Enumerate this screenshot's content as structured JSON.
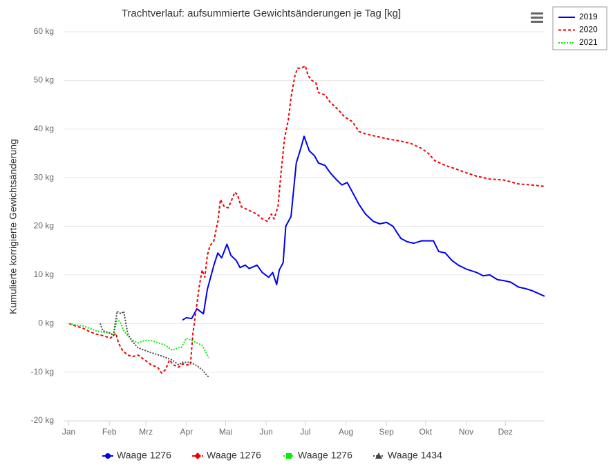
{
  "chart_data": {
    "type": "line",
    "title": "Trachtverlauf: aufsummierte Gewichtsänderungen je Tag [kg]",
    "y_label": "Kumulierte korrigierte Gewichtsänderung",
    "xlim": [
      -4,
      364
    ],
    "xticks": [
      {
        "value": 0,
        "label": "Jan"
      },
      {
        "value": 31,
        "label": "Feb"
      },
      {
        "value": 59,
        "label": "Mrz"
      },
      {
        "value": 90,
        "label": "Apr"
      },
      {
        "value": 120,
        "label": "Mai"
      },
      {
        "value": 151,
        "label": "Jun"
      },
      {
        "value": 181,
        "label": "Jul"
      },
      {
        "value": 212,
        "label": "Aug"
      },
      {
        "value": 243,
        "label": "Sep"
      },
      {
        "value": 273,
        "label": "Okt"
      },
      {
        "value": 304,
        "label": "Nov"
      },
      {
        "value": 334,
        "label": "Dez"
      }
    ],
    "ylim": [
      -20,
      60
    ],
    "yticks": [
      {
        "value": -20,
        "label": "-20 kg"
      },
      {
        "value": -10,
        "label": "-10 kg"
      },
      {
        "value": 0,
        "label": "0 kg"
      },
      {
        "value": 10,
        "label": "10 kg"
      },
      {
        "value": 20,
        "label": "20 kg"
      },
      {
        "value": 30,
        "label": "30 kg"
      },
      {
        "value": 40,
        "label": "40 kg"
      },
      {
        "value": 50,
        "label": "50 kg"
      },
      {
        "value": 60,
        "label": "60 kg"
      }
    ],
    "grid": true,
    "series": [
      {
        "name": "Waage 1276",
        "color": "#0000ee",
        "dash": "solid",
        "marker": "circle",
        "x": [
          87,
          90,
          94,
          98,
          103,
          106,
          111,
          114,
          117,
          121,
          124,
          128,
          131,
          135,
          138,
          144,
          148,
          153,
          156,
          159,
          161,
          164,
          166,
          170,
          174,
          178,
          180,
          184,
          188,
          191,
          196,
          200,
          205,
          209,
          213,
          217,
          222,
          227,
          233,
          238,
          243,
          248,
          254,
          259,
          264,
          270,
          275,
          279,
          283,
          288,
          293,
          298,
          304,
          312,
          317,
          322,
          328,
          333,
          338,
          344,
          349,
          354,
          359,
          364
        ],
        "values": [
          0.7,
          1.2,
          1.0,
          3.0,
          2.0,
          7,
          12,
          14.5,
          13.5,
          16.3,
          14,
          13,
          11.5,
          12,
          11.3,
          12,
          10.5,
          9.5,
          10.5,
          8,
          11,
          12.5,
          20,
          22,
          33,
          36.5,
          38.5,
          35.5,
          34.5,
          33,
          32.5,
          31,
          29.5,
          28.5,
          29,
          27,
          24.5,
          22.5,
          21,
          20.5,
          20.8,
          20,
          17.5,
          16.8,
          16.5,
          17,
          17,
          17,
          14.8,
          14.5,
          13,
          12,
          11.2,
          10.5,
          9.8,
          10,
          9,
          8.8,
          8.5,
          7.5,
          7.2,
          6.8,
          6.2,
          5.6
        ]
      },
      {
        "name": "Waage 1276",
        "color": "#ee0000",
        "dash": "dashed",
        "marker": "diamond",
        "x": [
          0,
          5,
          11,
          16,
          21,
          26,
          32,
          36,
          38,
          41,
          45,
          49,
          53,
          58,
          63,
          68,
          71,
          74,
          77,
          80,
          84,
          87,
          90,
          93,
          95,
          98,
          100,
          102,
          104,
          106,
          108,
          111,
          114,
          116,
          119,
          122,
          124,
          127,
          129,
          132,
          136,
          140,
          144,
          148,
          152,
          155,
          157,
          160,
          162,
          165,
          168,
          170,
          173,
          175,
          178,
          181,
          183,
          186,
          189,
          191,
          196,
          200,
          206,
          211,
          217,
          222,
          227,
          235,
          243,
          254,
          262,
          270,
          275,
          280,
          288,
          296,
          304,
          312,
          322,
          333,
          344,
          354,
          364
        ],
        "values": [
          0,
          -0.5,
          -1,
          -1.7,
          -2.2,
          -2.5,
          -3,
          -2,
          -4,
          -5.5,
          -6.5,
          -6.8,
          -6.5,
          -7.5,
          -8.5,
          -9,
          -10.2,
          -9.5,
          -7.5,
          -8.5,
          -9,
          -8.3,
          -8.5,
          -8.5,
          -2,
          4,
          8,
          11,
          9.5,
          14,
          16,
          17,
          21,
          25.5,
          24,
          23.8,
          25,
          27,
          26.5,
          24,
          23.5,
          23,
          22.5,
          21.5,
          21,
          22.5,
          21.5,
          24,
          30,
          38,
          42,
          46.5,
          51,
          52.5,
          52.5,
          53,
          51,
          50,
          49.5,
          47.5,
          47,
          45.5,
          44,
          42.5,
          41.5,
          39.5,
          39,
          38.5,
          38,
          37.5,
          37,
          36,
          35,
          33.5,
          32.5,
          31.8,
          31,
          30.3,
          29.7,
          29.5,
          28.7,
          28.5,
          28.2
        ]
      },
      {
        "name": "Waage 1276",
        "color": "#00ee00",
        "dash": "dotted",
        "marker": "square",
        "x": [
          0,
          5,
          11,
          16,
          21,
          26,
          32,
          34,
          37,
          40,
          42,
          45,
          49,
          53,
          58,
          63,
          69,
          74,
          79,
          84,
          86,
          90,
          94,
          98,
          102,
          105,
          107
        ],
        "values": [
          0,
          -0.3,
          -0.5,
          -1,
          -1.5,
          -1.8,
          -2,
          -2.5,
          1,
          0,
          -1.5,
          -2.5,
          -3.5,
          -4,
          -3.5,
          -3.5,
          -4,
          -4.5,
          -5.5,
          -5,
          -5,
          -3,
          -3.5,
          -4,
          -4.5,
          -6,
          -7
        ]
      },
      {
        "name": "Waage 1434",
        "color": "#444444",
        "dash": "dotted",
        "marker": "triangle",
        "x": [
          24,
          26,
          32,
          34,
          37,
          40,
          42,
          45,
          48,
          53,
          58,
          63,
          69,
          74,
          79,
          84,
          87,
          93,
          98,
          102,
          105,
          107
        ],
        "values": [
          0,
          -1.5,
          -2,
          -2.5,
          2.5,
          2,
          2.5,
          -2,
          -3.5,
          -5,
          -5.5,
          -6,
          -6.5,
          -7,
          -7.5,
          -8.5,
          -8,
          -8,
          -8.7,
          -9.5,
          -10.5,
          -11
        ]
      }
    ],
    "year_legend": [
      {
        "label": "2019",
        "color": "#0000ee",
        "dash": "solid"
      },
      {
        "label": "2020",
        "color": "#ee0000",
        "dash": "dashed"
      },
      {
        "label": "2021",
        "color": "#00ee00",
        "dash": "dotted"
      }
    ]
  }
}
